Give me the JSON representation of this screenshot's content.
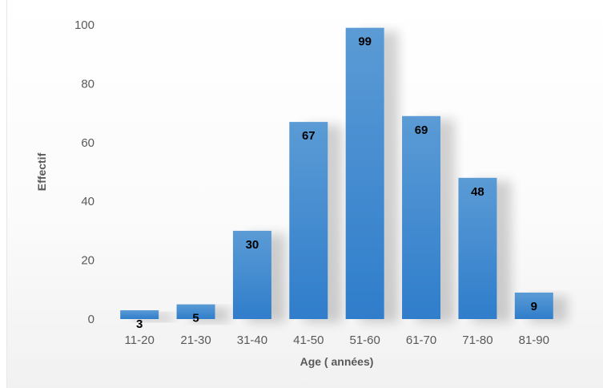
{
  "chart_data": {
    "type": "bar",
    "categories": [
      "11-20",
      "21-30",
      "31-40",
      "41-50",
      "51-60",
      "61-70",
      "71-80",
      "81-90"
    ],
    "values": [
      3,
      5,
      30,
      67,
      99,
      69,
      48,
      9
    ],
    "xlabel": "Age ( années)",
    "ylabel": "Effectif",
    "ylim": [
      0,
      100
    ],
    "yticks": [
      0,
      20,
      40,
      60,
      80,
      100
    ],
    "grid": false,
    "legend": "none",
    "data_labels": true,
    "colors": {
      "bar_top": "#5b9bd5",
      "bar_bottom": "#2f7dcb",
      "label_text": "#000000",
      "axis_text": "#595959"
    }
  }
}
